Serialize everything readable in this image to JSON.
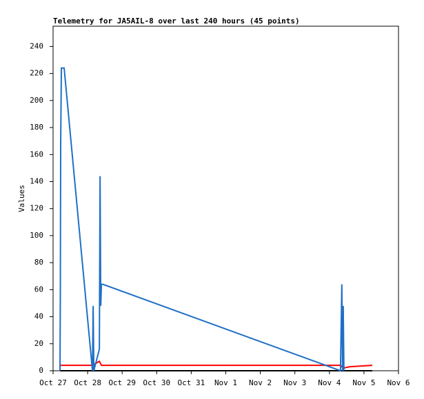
{
  "chart_data": {
    "type": "line",
    "title": "Telemetry for JA5AIL-8 over last 240 hours (45 points)",
    "y_label": "Values",
    "xlim": [
      0,
      10
    ],
    "xticks": [
      {
        "value": 0,
        "label": "Oct 27"
      },
      {
        "value": 1,
        "label": "Oct 28"
      },
      {
        "value": 2,
        "label": "Oct 29"
      },
      {
        "value": 3,
        "label": "Oct 30"
      },
      {
        "value": 4,
        "label": "Oct 31"
      },
      {
        "value": 5,
        "label": "Nov 1"
      },
      {
        "value": 6,
        "label": "Nov 2"
      },
      {
        "value": 7,
        "label": "Nov 3"
      },
      {
        "value": 8,
        "label": "Nov 4"
      },
      {
        "value": 9,
        "label": "Nov 5"
      },
      {
        "value": 10,
        "label": "Nov 6"
      }
    ],
    "ylim": [
      0,
      255
    ],
    "yticks": [
      0,
      20,
      40,
      60,
      80,
      100,
      120,
      140,
      160,
      180,
      200,
      220,
      240
    ],
    "series": [
      {
        "color": "#000000",
        "x": [
          0.2,
          9.24
        ],
        "values": [
          0,
          0
        ]
      },
      {
        "color": "#ff0000",
        "x": [
          0.2,
          1.14,
          1.34,
          1.4,
          8.32,
          8.4,
          8.6,
          9.24
        ],
        "values": [
          4,
          4,
          7,
          4,
          4,
          2,
          3,
          4
        ]
      },
      {
        "color": "#1f6fc6",
        "x": [
          0.2,
          0.21,
          0.22,
          0.24,
          0.32,
          1.14,
          1.16,
          1.18,
          1.34,
          1.36,
          1.38,
          1.4,
          1.44,
          8.32,
          8.36,
          8.38,
          8.4,
          8.42
        ],
        "values": [
          0,
          56,
          168,
          224,
          224,
          0,
          48,
          0,
          16,
          144,
          48,
          64,
          64,
          0,
          64,
          0,
          48,
          0
        ]
      }
    ]
  }
}
